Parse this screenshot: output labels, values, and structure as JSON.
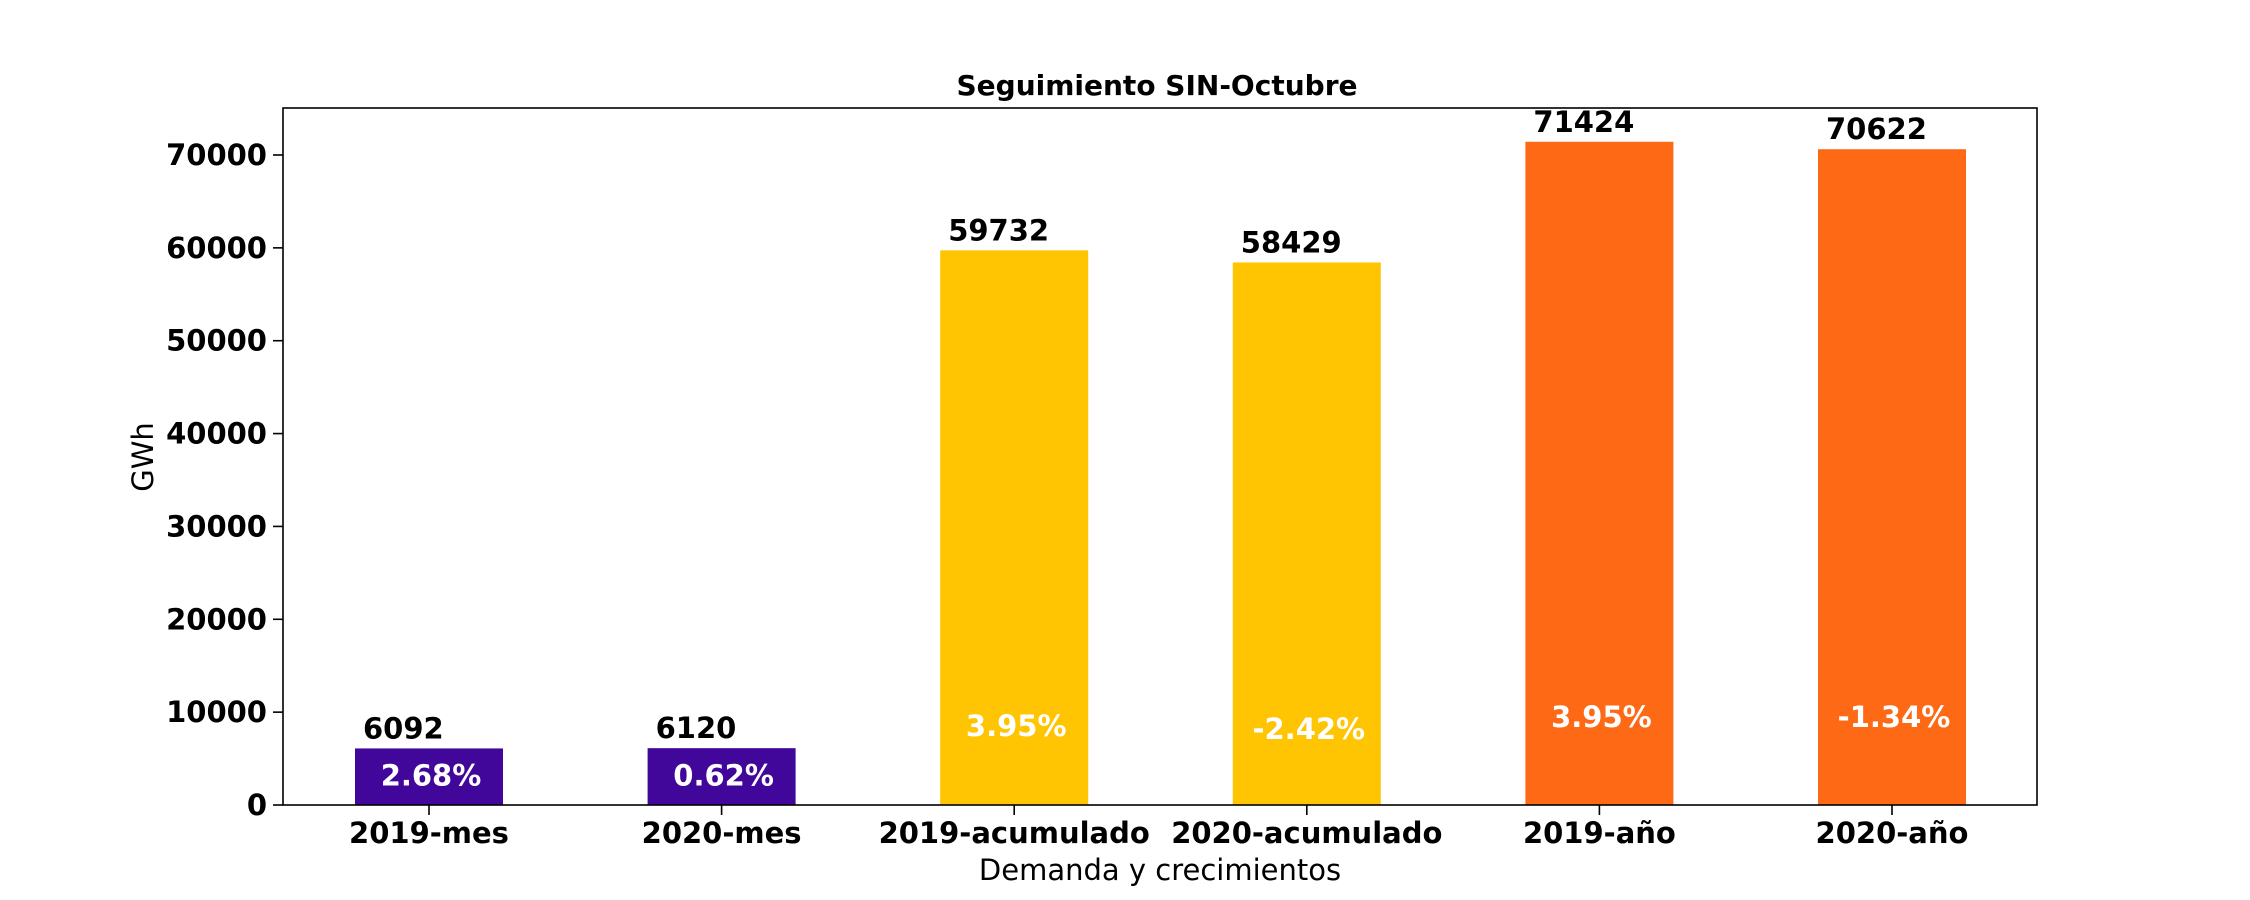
{
  "chart_data": {
    "type": "bar",
    "title": "Seguimiento SIN-Octubre",
    "xlabel": "Demanda y crecimientos",
    "ylabel": "GWh",
    "ylim": [
      0,
      75000
    ],
    "yticks": [
      0,
      10000,
      20000,
      30000,
      40000,
      50000,
      60000,
      70000
    ],
    "ytick_labels": [
      "0",
      "10000",
      "20000",
      "30000",
      "40000",
      "50000",
      "60000",
      "70000"
    ],
    "grid": false,
    "categories": [
      "2019-mes",
      "2020-mes",
      "2019-acumulado",
      "2020-acumulado",
      "2019-año",
      "2020-año"
    ],
    "values": [
      6092,
      6120,
      59732,
      58429,
      71424,
      70622
    ],
    "value_labels": [
      "6092",
      "6120",
      "59732",
      "58429",
      "71424",
      "70622"
    ],
    "growth_labels": [
      "2.68%",
      "0.62%",
      "3.95%",
      "-2.42%",
      "3.95%",
      "-1.34%"
    ],
    "growth_label_levels": [
      3200,
      3200,
      8500,
      8200,
      9500,
      9500
    ],
    "colors": [
      "#41069A",
      "#41069A",
      "#FFC402",
      "#FFC402",
      "#FE6916",
      "#FE6916"
    ]
  }
}
